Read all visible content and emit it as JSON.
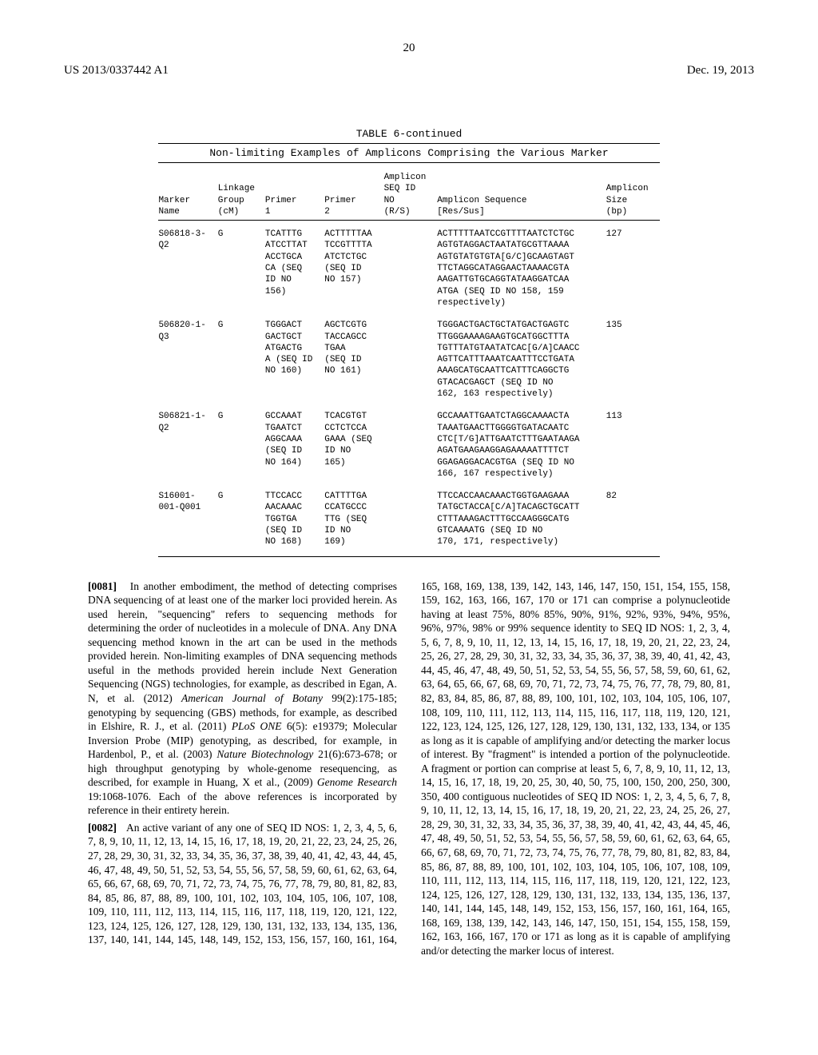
{
  "header": {
    "left": "US 2013/0337442 A1",
    "right": "Dec. 19, 2013",
    "pagenum": "20"
  },
  "table": {
    "title": "TABLE 6-continued",
    "subtitle": "Non-limiting Examples of Amplicons Comprising the Various Marker",
    "columns": [
      "Marker\nName",
      "Linkage\nGroup\n(cM)",
      "Primer\n1",
      "Primer\n2",
      "Amplicon\nSEQ ID\nNO\n(R/S)",
      "Amplicon Sequence\n[Res/Sus]",
      "Amplicon\nSize\n(bp)"
    ],
    "rows": [
      {
        "marker": "S06818-3-\nQ2",
        "linkage": "G",
        "primer1": "TCATTTG\nATCCTTAT\nACCTGCA\nCA (SEQ\nID NO\n156)",
        "primer2": "ACTTTTTAA\nTCCGTTTTA\nATCTCTGC\n(SEQ ID\nNO 157)",
        "ampid": "",
        "seq": "ACTTTTTAATCCGTTTTAATCTCTGC\nAGTGTAGGACTAATATGCGTTAAAA\nAGTGTATGTGTA[G/C]GCAAGTAGT\nTTCTAGGCATAGGAACTAAAACGTA\nAAGATTGTGCAGGTATAAGGATCAA\nATGA (SEQ ID NO 158, 159\nrespectively)",
        "size": "127"
      },
      {
        "marker": "506820-1-\nQ3",
        "linkage": "G",
        "primer1": "TGGGACT\nGACTGCT\nATGACTG\nA (SEQ ID\nNO 160)",
        "primer2": "AGCTCGTG\nTACCAGCC\nTGAA\n(SEQ ID\nNO 161)",
        "ampid": "",
        "seq": "TGGGACTGACTGCTATGACTGAGTC\nTTGGGAAAAGAAGTGCATGGCTTTA\nTGTTTATGTAATATCAC[G/A]CAACC\nAGTTCATTTAAATCAATTTCCTGATA\nAAAGCATGCAATTCATTTCAGGCTG\nGTACACGAGCT (SEQ ID NO\n162, 163 respectively)",
        "size": "135"
      },
      {
        "marker": "S06821-1-\nQ2",
        "linkage": "G",
        "primer1": "GCCAAAT\nTGAATCT\nAGGCAAA\n(SEQ ID\nNO 164)",
        "primer2": "TCACGTGT\nCCTCTCCA\nGAAA (SEQ\nID NO\n165)",
        "ampid": "",
        "seq": "GCCAAATTGAATCTAGGCAAAACTA\nTAAATGAACTTGGGGTGATACAATC\nCTC[T/G]ATTGAATCTTTGAATAAGA\nAGATGAAGAAGGAGAAAAATTTTCT\nGGAGAGGACACGTGA (SEQ ID NO\n166, 167 respectively)",
        "size": "113"
      },
      {
        "marker": "S16001-\n001-Q001",
        "linkage": "G",
        "primer1": "TTCCACC\nAACAAAC\nTGGTGA\n(SEQ ID\nNO 168)",
        "primer2": "CATTTTGA\nCCATGCCC\nTTG (SEQ\nID NO\n169)",
        "ampid": "",
        "seq": "TTCCACCAACAAACTGGTGAAGAAA\nTATGCTACCA[C/A]TACAGCTGCATT\nCTTTAAAGACTTTGCCAAGGGCATG\nGTCAAAATG (SEQ ID NO\n170, 171, respectively)",
        "size": "82"
      }
    ]
  },
  "paragraphs": [
    {
      "num": "[0081]",
      "text": "In another embodiment, the method of detecting comprises DNA sequencing of at least one of the marker loci provided herein. As used herein, \"sequencing\" refers to sequencing methods for determining the order of nucleotides in a molecule of DNA. Any DNA sequencing method known in the art can be used in the methods provided herein. Non-limiting examples of DNA sequencing methods useful in the methods provided herein include Next Generation Sequencing (NGS) technologies, for example, as described in Egan, A. N, et al. (2012) <i>American Journal of Botany</i> 99(2):175-185; genotyping by sequencing (GBS) methods, for example, as described in Elshire, R. J., et al. (2011) <i>PLoS ONE</i> 6(5): e19379; Molecular Inversion Probe (MIP) genotyping, as described, for example, in Hardenbol, P., et al. (2003) <i>Nature Biotechnology</i> 21(6):673-678; or high throughput genotyping by whole-genome resequencing, as described, for example in Huang, X et al., (2009) <i>Genome Research</i> 19:1068-1076. Each of the above references is incorporated by reference in their entirety herein."
    },
    {
      "num": "[0082]",
      "text": "An active variant of any one of SEQ ID NOS: 1, 2, 3, 4, 5, 6, 7, 8, 9, 10, 11, 12, 13, 14, 15, 16, 17, 18, 19, 20, 21, 22, 23, 24, 25, 26, 27, 28, 29, 30, 31, 32, 33, 34, 35, 36, 37, 38, 39, 40, 41, 42, 43, 44, 45, 46, 47, 48, 49, 50, 51, 52, 53, 54, 55, 56, 57, 58, 59, 60, 61, 62, 63, 64, 65, 66, 67, 68, 69, 70, 71, 72, 73, 74, 75, 76, 77, 78, 79, 80, 81, 82, 83, 84, 85, 86, 87, 88, 89, 100, 101, 102, 103, 104, 105, 106, 107, 108, 109, 110, 111, 112, 113, 114, 115, 116, 117, 118, 119, 120, 121, 122, 123, 124, 125, 126, 127, 128, 129, 130, 131, 132, 133, 134, 135, 136, 137, 140, 141, 144, 145, 148, 149, 152, 153, 156, 157, 160, 161, 164, 165, 168, 169, 138, 139, 142, 143, 146, 147, 150, 151, 154, 155, 158, 159, 162, 163, 166, 167, 170 or 171 can comprise a polynucleotide having at least 75%, 80% 85%, 90%, 91%, 92%, 93%, 94%, 95%, 96%, 97%, 98% or 99% sequence identity to SEQ ID NOS: 1, 2, 3, 4, 5, 6, 7, 8, 9, 10, 11, 12, 13, 14, 15, 16, 17, 18, 19, 20, 21, 22, 23, 24, 25, 26, 27, 28, 29, 30, 31, 32, 33, 34, 35, 36, 37, 38, 39, 40, 41, 42, 43, 44, 45, 46, 47, 48, 49, 50, 51, 52, 53, 54, 55, 56, 57, 58, 59, 60, 61, 62, 63, 64, 65, 66, 67, 68, 69, 70, 71, 72, 73, 74, 75, 76, 77, 78, 79, 80, 81, 82, 83, 84, 85, 86, 87, 88, 89, 100, 101, 102, 103, 104, 105, 106, 107, 108, 109, 110, 111, 112, 113, 114, 115, 116, 117, 118, 119, 120, 121, 122, 123, 124, 125, 126, 127, 128, 129, 130, 131, 132, 133, 134, or 135 as long as it is capable of amplifying and/or detecting the marker locus of interest. By \"fragment\" is intended a portion of the polynucleotide. A fragment or portion can comprise at least 5, 6, 7, 8, 9, 10, 11, 12, 13, 14, 15, 16, 17, 18, 19, 20, 25, 30, 40, 50, 75, 100, 150, 200, 250, 300, 350, 400 contiguous nucleotides of SEQ ID NOS: 1, 2, 3, 4, 5, 6, 7, 8, 9, 10, 11, 12, 13, 14, 15, 16, 17, 18, 19, 20, 21, 22, 23, 24, 25, 26, 27, 28, 29, 30, 31, 32, 33, 34, 35, 36, 37, 38, 39, 40, 41, 42, 43, 44, 45, 46, 47, 48, 49, 50, 51, 52, 53, 54, 55, 56, 57, 58, 59, 60, 61, 62, 63, 64, 65, 66, 67, 68, 69, 70, 71, 72, 73, 74, 75, 76, 77, 78, 79, 80, 81, 82, 83, 84, 85, 86, 87, 88, 89, 100, 101, 102, 103, 104, 105, 106, 107, 108, 109, 110, 111, 112, 113, 114, 115, 116, 117, 118, 119, 120, 121, 122, 123, 124, 125, 126, 127, 128, 129, 130, 131, 132, 133, 134, 135, 136, 137, 140, 141, 144, 145, 148, 149, 152, 153, 156, 157, 160, 161, 164, 165, 168, 169, 138, 139, 142, 143, 146, 147, 150, 151, 154, 155, 158, 159, 162, 163, 166, 167, 170 or 171 as long as it is capable of amplifying and/or detecting the marker locus of interest."
    }
  ]
}
